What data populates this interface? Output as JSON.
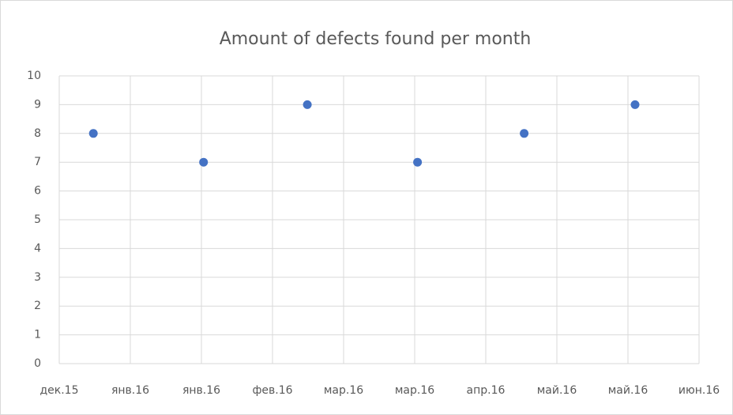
{
  "chart_data": {
    "type": "scatter",
    "title": "Amount of defects found per month",
    "x": [
      0.48,
      2.03,
      3.49,
      5.04,
      6.54,
      8.1
    ],
    "values": [
      8,
      7,
      9,
      7,
      8,
      9
    ],
    "color": "#4472c4",
    "xlim": [
      0,
      9
    ],
    "xticks": [
      {
        "value": 0,
        "label": "дек.15"
      },
      {
        "value": 1,
        "label": "янв.16"
      },
      {
        "value": 2,
        "label": "янв.16"
      },
      {
        "value": 3,
        "label": "фев.16"
      },
      {
        "value": 4,
        "label": "мар.16"
      },
      {
        "value": 5,
        "label": "мар.16"
      },
      {
        "value": 6,
        "label": "апр.16"
      },
      {
        "value": 7,
        "label": "май.16"
      },
      {
        "value": 8,
        "label": "май.16"
      },
      {
        "value": 9,
        "label": "июн.16"
      }
    ],
    "ylim": [
      0,
      10
    ],
    "yticks": [
      0,
      1,
      2,
      3,
      4,
      5,
      6,
      7,
      8,
      9,
      10
    ],
    "grid": true
  }
}
